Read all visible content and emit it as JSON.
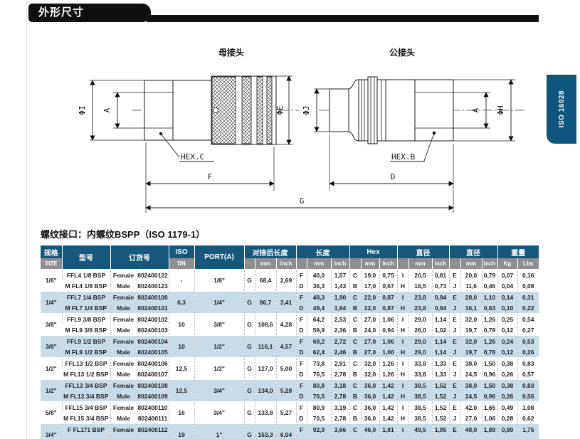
{
  "header": {
    "section_title": "外形尺寸"
  },
  "side_tab": {
    "label": "ISO 16028",
    "color": "#0f567c"
  },
  "colors": {
    "table_header": "#16587c",
    "table_subheader": "#8f8f91",
    "row_shade": "#cadbe8",
    "bar": "#101010"
  },
  "drawing": {
    "female_label": "母接头",
    "male_label": "公接头",
    "hex_c": "HEX.C",
    "hex_b": "HEX.B",
    "dim_phi_i": "ΦI",
    "dim_a_left": "A",
    "dim_phi_e": "ΦE",
    "dim_phi_j": "ΦJ",
    "dim_a_right": "A",
    "dim_phi_h": "ΦH",
    "dim_f": "F",
    "dim_d": "D",
    "dim_g": "G"
  },
  "thread_note": "螺纹接口：内螺纹BSPP（ISO 1179-1）",
  "table": {
    "header": {
      "size_cn": "规格",
      "size_en": "SIZE",
      "model": "型号",
      "order_no": "订货号",
      "iso": "ISO",
      "dn": "DN",
      "port": "PORT(A)",
      "coupled_length": "对接后长度",
      "length": "长度",
      "hex": "Hex",
      "diameter1": "直径",
      "diameter2": "直径",
      "weight": "重量",
      "mm": "mm",
      "inch": "inch",
      "kg": "Kg",
      "lbs": "Lbs"
    },
    "groups": [
      {
        "size": "1/8\"",
        "iso_dn": "-",
        "port": "1/8\"",
        "coupled": [
          "G",
          "68,4",
          "2,69"
        ],
        "shaded": false,
        "rows": [
          {
            "model": "FFL4 1/8 BSP",
            "gender": "Female",
            "order": "802400122",
            "len": [
              "F",
              "40,0",
              "1,57"
            ],
            "hex": [
              "C",
              "19,0",
              "0,75"
            ],
            "dia1": [
              "I",
              "20,5",
              "0,81"
            ],
            "dia2": [
              "E",
              "20,0",
              "0,79"
            ],
            "kg": "0,07",
            "lbs": "0,16"
          },
          {
            "model": "M FL4 1/8 BSP",
            "gender": "Male",
            "order": "802400123",
            "len": [
              "D",
              "36,3",
              "1,43"
            ],
            "hex": [
              "B",
              "17,0",
              "0,67"
            ],
            "dia1": [
              "H",
              "18,5",
              "0,73"
            ],
            "dia2": [
              "J",
              "11,6",
              "0,46"
            ],
            "kg": "0,04",
            "lbs": "0,08"
          }
        ]
      },
      {
        "size": "1/4\"",
        "iso_dn": "6,3",
        "port": "1/4\"",
        "coupled": [
          "G",
          "86,7",
          "3,41"
        ],
        "shaded": true,
        "rows": [
          {
            "model": "FFL7 1/4 BSP",
            "gender": "Female",
            "order": "802400100",
            "len": [
              "F",
              "48,3",
              "1,90"
            ],
            "hex": [
              "C",
              "22,0",
              "0,87"
            ],
            "dia1": [
              "I",
              "23,8",
              "0,94"
            ],
            "dia2": [
              "E",
              "28,0",
              "1,10"
            ],
            "kg": "0,14",
            "lbs": "0,31"
          },
          {
            "model": "M FL7 1/4 BSP",
            "gender": "Male",
            "order": "802400101",
            "len": [
              "D",
              "49,4",
              "1,94"
            ],
            "hex": [
              "B",
              "22,0",
              "0,87"
            ],
            "dia1": [
              "H",
              "23,8",
              "0,94"
            ],
            "dia2": [
              "J",
              "16,1",
              "0,63"
            ],
            "kg": "0,10",
            "lbs": "0,22"
          }
        ]
      },
      {
        "size": "3/8\"",
        "iso_dn": "10",
        "port": "3/8\"",
        "coupled": [
          "G",
          "108,6",
          "4,28"
        ],
        "shaded": false,
        "rows": [
          {
            "model": "FFL9 3/8 BSP",
            "gender": "Female",
            "order": "802400102",
            "len": [
              "F",
              "64,2",
              "2,53"
            ],
            "hex": [
              "C",
              "27,0",
              "1,06"
            ],
            "dia1": [
              "I",
              "29,0",
              "1,14"
            ],
            "dia2": [
              "E",
              "32,0",
              "1,26"
            ],
            "kg": "0,25",
            "lbs": "0,54"
          },
          {
            "model": "M FL9 3/8 BSP",
            "gender": "Male",
            "order": "802400103",
            "len": [
              "D",
              "59,9",
              "2,36"
            ],
            "hex": [
              "B",
              "24,0",
              "0,94"
            ],
            "dia1": [
              "H",
              "26,0",
              "1,02"
            ],
            "dia2": [
              "J",
              "19,7",
              "0,78"
            ],
            "kg": "0,12",
            "lbs": "0,27"
          }
        ]
      },
      {
        "size": "3/8\"",
        "iso_dn": "10",
        "port": "1/2\"",
        "coupled": [
          "G",
          "116,1",
          "4,57"
        ],
        "shaded": true,
        "rows": [
          {
            "model": "FFL9 1/2 BSP",
            "gender": "Female",
            "order": "802400104",
            "len": [
              "F",
              "69,2",
              "2,72"
            ],
            "hex": [
              "C",
              "27,0",
              "1,06"
            ],
            "dia1": [
              "I",
              "29,0",
              "1,14"
            ],
            "dia2": [
              "E",
              "32,0",
              "1,26"
            ],
            "kg": "0,24",
            "lbs": "0,53"
          },
          {
            "model": "M FL9 1/2 BSP",
            "gender": "Male",
            "order": "802400105",
            "len": [
              "D",
              "62,4",
              "2,46"
            ],
            "hex": [
              "B",
              "27,0",
              "1,06"
            ],
            "dia1": [
              "H",
              "29,0",
              "1,14"
            ],
            "dia2": [
              "J",
              "19,7",
              "0,78"
            ],
            "kg": "0,12",
            "lbs": "0,26"
          }
        ]
      },
      {
        "size": "1/2\"",
        "iso_dn": "12,5",
        "port": "1/2\"",
        "coupled": [
          "G",
          "127,0",
          "5,00"
        ],
        "shaded": false,
        "rows": [
          {
            "model": "FFL13 1/2 BSP",
            "gender": "Female",
            "order": "802400106",
            "len": [
              "F",
              "73,8",
              "2,91"
            ],
            "hex": [
              "C",
              "32,0",
              "1,26"
            ],
            "dia1": [
              "I",
              "33,8",
              "1,33"
            ],
            "dia2": [
              "E",
              "38,0",
              "1,50"
            ],
            "kg": "0,38",
            "lbs": "0,83"
          },
          {
            "model": "M FL13 1/2 BSP",
            "gender": "Male",
            "order": "802400107",
            "len": [
              "D",
              "70,5",
              "2,78"
            ],
            "hex": [
              "B",
              "32,0",
              "1,26"
            ],
            "dia1": [
              "H",
              "33,8",
              "1,33"
            ],
            "dia2": [
              "J",
              "24,5",
              "0,96"
            ],
            "kg": "0,26",
            "lbs": "0,57"
          }
        ]
      },
      {
        "size": "1/2\"",
        "iso_dn": "12,5",
        "port": "3/4\"",
        "coupled": [
          "G",
          "134,0",
          "5,28"
        ],
        "shaded": true,
        "rows": [
          {
            "model": "FFL13 3/4 BSP",
            "gender": "Female",
            "order": "802400108",
            "len": [
              "F",
              "80,8",
              "3,18"
            ],
            "hex": [
              "C",
              "36,0",
              "1,42"
            ],
            "dia1": [
              "I",
              "38,5",
              "1,52"
            ],
            "dia2": [
              "E",
              "38,0",
              "1,50"
            ],
            "kg": "0,38",
            "lbs": "0,83"
          },
          {
            "model": "M FL13 3/4 BSP",
            "gender": "Male",
            "order": "802400109",
            "len": [
              "D",
              "70,5",
              "2,78"
            ],
            "hex": [
              "B",
              "36,0",
              "1,42"
            ],
            "dia1": [
              "H",
              "38,5",
              "1,52"
            ],
            "dia2": [
              "J",
              "24,5",
              "0,96"
            ],
            "kg": "0,26",
            "lbs": "0,56"
          }
        ]
      },
      {
        "size": "5/8\"",
        "iso_dn": "16",
        "port": "3/4\"",
        "coupled": [
          "G",
          "133,8",
          "5,27"
        ],
        "shaded": false,
        "rows": [
          {
            "model": "FFL15 3/4 BSP",
            "gender": "Female",
            "order": "802400110",
            "len": [
              "F",
              "80,9",
              "3,19"
            ],
            "hex": [
              "C",
              "36,0",
              "1,42"
            ],
            "dia1": [
              "I",
              "38,5",
              "1,52"
            ],
            "dia2": [
              "E",
              "42,0",
              "1,65"
            ],
            "kg": "0,49",
            "lbs": "1,08"
          },
          {
            "model": "M FL15 3/4 BSP",
            "gender": "Male",
            "order": "802400111",
            "len": [
              "D",
              "70,5",
              "2,78"
            ],
            "hex": [
              "B",
              "36,0",
              "1,42"
            ],
            "dia1": [
              "H",
              "38,5",
              "1,52"
            ],
            "dia2": [
              "J",
              "27,0",
              "1,06"
            ],
            "kg": "0,28",
            "lbs": "0,62"
          }
        ]
      },
      {
        "size": "3/4\"",
        "iso_dn": "19",
        "port": "1\"",
        "coupled": [
          "G",
          "153,3",
          "6,04"
        ],
        "shaded": true,
        "rows": [
          {
            "model": "F FL171 BSP",
            "gender": "Female",
            "order": "802400112",
            "len": [
              "F",
              "92,9",
              "3,66"
            ],
            "hex": [
              "C",
              "46,0",
              "1,81"
            ],
            "dia1": [
              "I",
              "49,5",
              "1,95"
            ],
            "dia2": [
              "E",
              "48,0",
              "1,89"
            ],
            "kg": "0,80",
            "lbs": "1,75"
          },
          {
            "model": "",
            "gender": "",
            "order": "",
            "len": [
              "",
              "",
              ""
            ],
            "hex": [
              "",
              "",
              ""
            ],
            "dia1": [
              "",
              "",
              ""
            ],
            "dia2": [
              "",
              "",
              ""
            ],
            "kg": "",
            "lbs": ""
          }
        ]
      }
    ]
  }
}
